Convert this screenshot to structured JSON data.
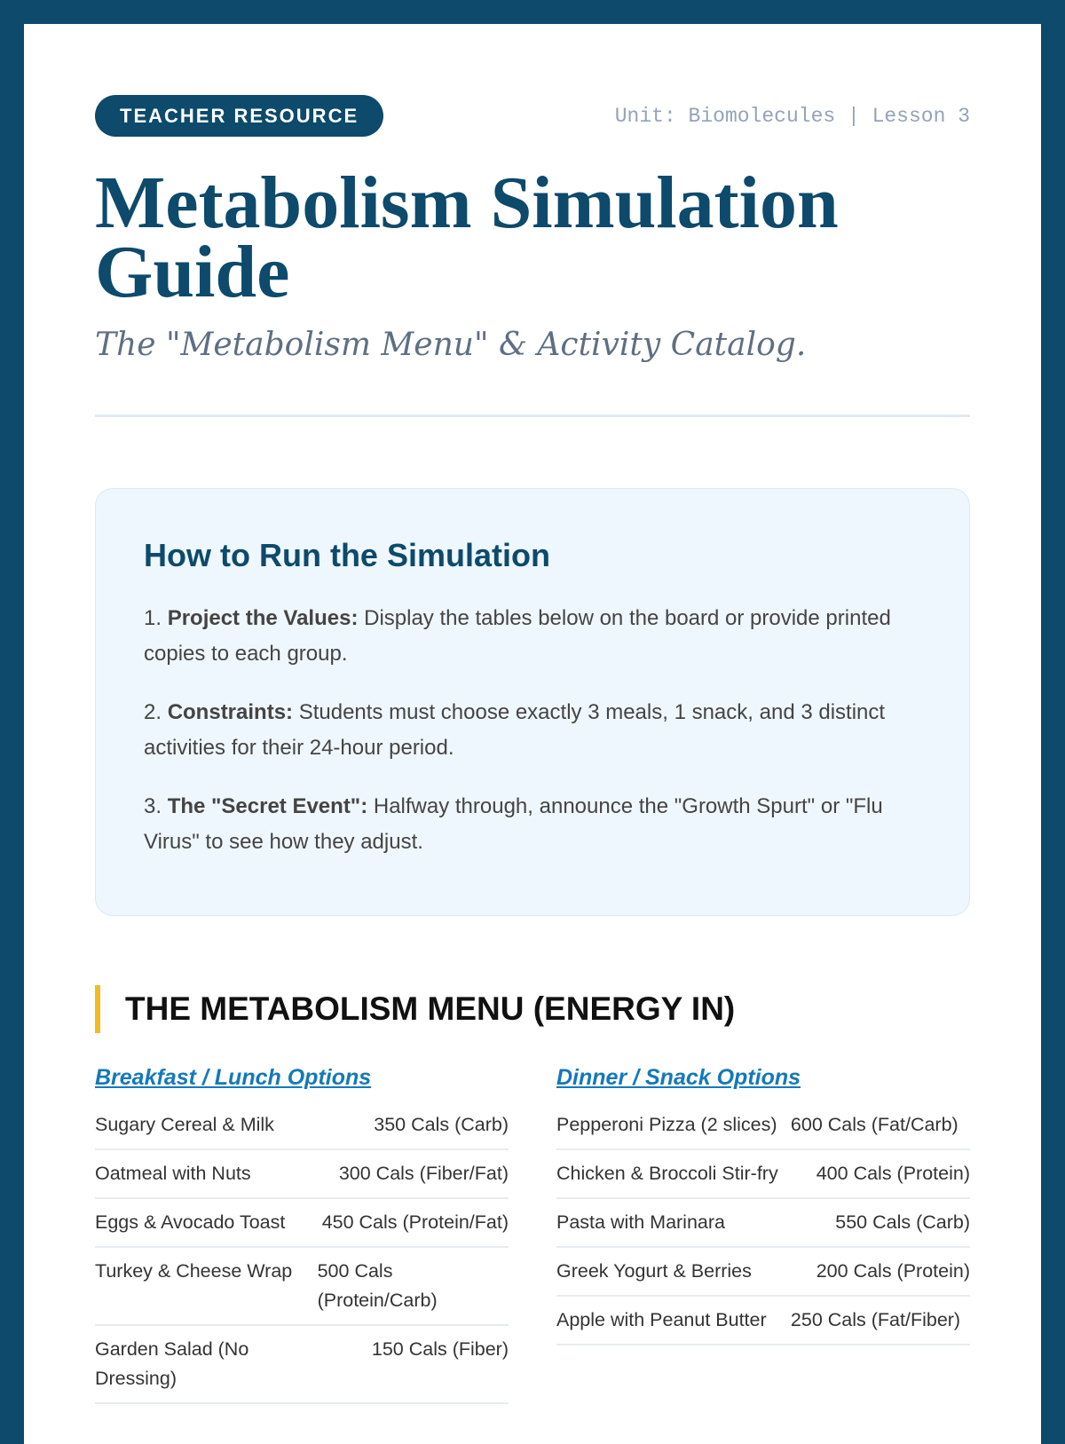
{
  "header": {
    "badge": "TEACHER RESOURCE",
    "meta": "Unit: Biomolecules | Lesson 3",
    "title": "Metabolism Simulation Guide",
    "subtitle": "The \"Metabolism Menu\" & Activity Catalog."
  },
  "instructions": {
    "title": "How to Run the Simulation",
    "steps": [
      {
        "num": "1.",
        "bold": "Project the Values:",
        "text": " Display the tables below on the board or provide printed copies to each group."
      },
      {
        "num": "2.",
        "bold": "Constraints:",
        "text": " Students must choose exactly 3 meals, 1 snack, and 3 distinct activities for their 24-hour period."
      },
      {
        "num": "3.",
        "bold": "The \"Secret Event\":",
        "text": " Halfway through, announce the \"Growth Spurt\" or \"Flu Virus\" to see how they adjust."
      }
    ]
  },
  "menu": {
    "title": "THE METABOLISM MENU (ENERGY IN)",
    "breakfast": {
      "title": "Breakfast / Lunch Options",
      "items": [
        {
          "name": "Sugary Cereal & Milk",
          "value": "350 Cals (Carb)"
        },
        {
          "name": "Oatmeal with Nuts",
          "value": "300 Cals (Fiber/Fat)"
        },
        {
          "name": "Eggs & Avocado Toast",
          "value": "450 Cals (Protein/Fat)"
        },
        {
          "name": "Turkey & Cheese Wrap",
          "value": "500 Cals (Protein/Carb)"
        },
        {
          "name": "Garden Salad (No Dressing)",
          "value": "150 Cals (Fiber)"
        }
      ]
    },
    "dinner": {
      "title": "Dinner / Snack Options",
      "items": [
        {
          "name": "Pepperoni Pizza (2 slices)",
          "value": "600 Cals (Fat/Carb)"
        },
        {
          "name": "Chicken & Broccoli Stir-fry",
          "value": "400 Cals (Protein)"
        },
        {
          "name": "Pasta with Marinara",
          "value": "550 Cals (Carb)"
        },
        {
          "name": "Greek Yogurt & Berries",
          "value": "200 Cals (Protein)"
        },
        {
          "name": "Apple with Peanut Butter",
          "value": "250 Cals (Fat/Fiber)"
        }
      ]
    }
  }
}
